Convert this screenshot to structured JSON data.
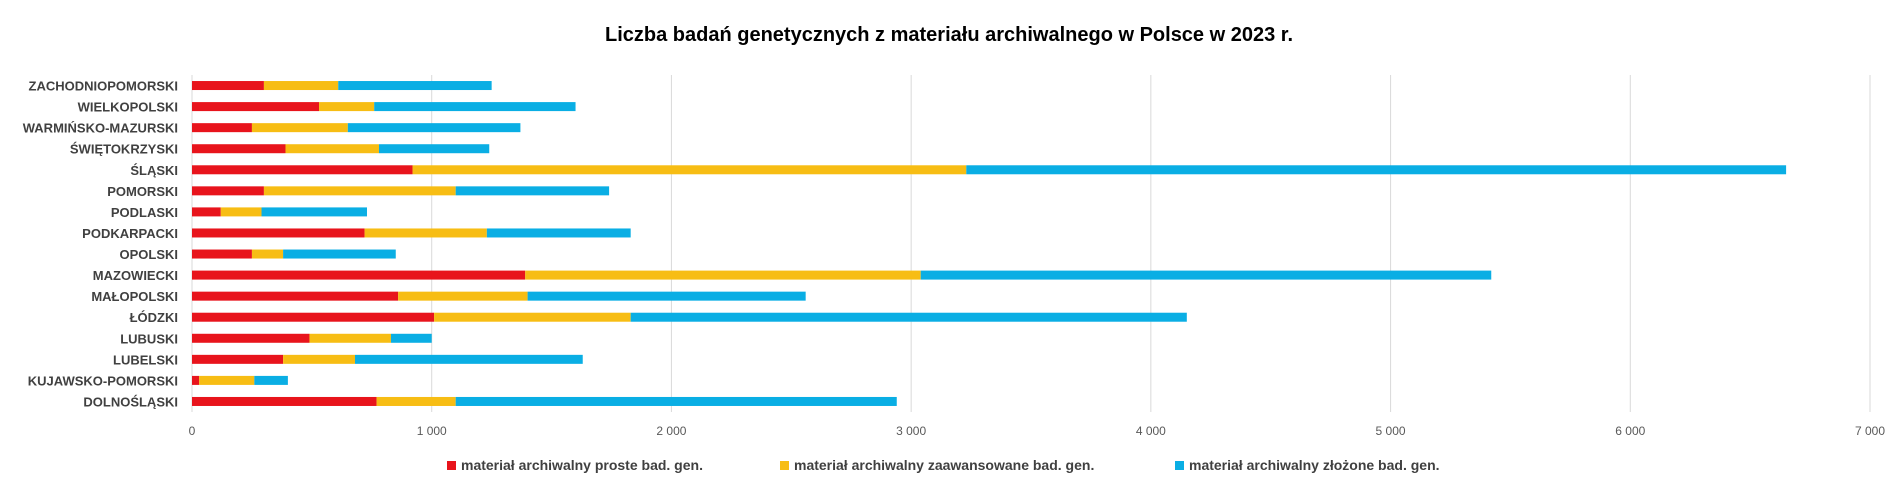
{
  "chart_data": {
    "type": "bar",
    "orientation": "horizontal",
    "stacked": true,
    "title": "Liczba badań genetycznych z materiału archiwalnego w Polsce w 2023 r.",
    "xlabel": "",
    "ylabel": "",
    "xlim": [
      0,
      7000
    ],
    "xticks": [
      0,
      1000,
      2000,
      3000,
      4000,
      5000,
      6000,
      7000
    ],
    "xtick_labels": [
      "0",
      "1 000",
      "2 000",
      "3 000",
      "4 000",
      "5 000",
      "6 000",
      "7 000"
    ],
    "grid": "vertical",
    "legend_position": "bottom",
    "categories": [
      "ZACHODNIOPOMORSKI",
      "WIELKOPOLSKI",
      "WARMIŃSKO-MAZURSKI",
      "ŚWIĘTOKRZYSKI",
      "ŚLĄSKI",
      "POMORSKI",
      "PODLASKI",
      "PODKARPACKI",
      "OPOLSKI",
      "MAZOWIECKI",
      "MAŁOPOLSKI",
      "ŁÓDZKI",
      "LUBUSKI",
      "LUBELSKI",
      "KUJAWSKO-POMORSKI",
      "DOLNOŚLĄSKI"
    ],
    "series": [
      {
        "name": "materiał archiwalny proste bad. gen.",
        "color": "#e8141c",
        "values": [
          300,
          530,
          250,
          390,
          920,
          300,
          120,
          720,
          250,
          1390,
          860,
          1010,
          490,
          380,
          30,
          770
        ]
      },
      {
        "name": "materiał archiwalny zaawansowane bad. gen.",
        "color": "#f7bd14",
        "values": [
          310,
          230,
          400,
          390,
          2310,
          800,
          170,
          510,
          130,
          1650,
          540,
          820,
          340,
          300,
          230,
          330
        ]
      },
      {
        "name": "materiał archiwalny złożone bad. gen.",
        "color": "#0aaee4",
        "values": [
          640,
          840,
          720,
          460,
          3420,
          640,
          440,
          600,
          470,
          2380,
          1160,
          2320,
          170,
          950,
          140,
          1840
        ]
      }
    ]
  }
}
